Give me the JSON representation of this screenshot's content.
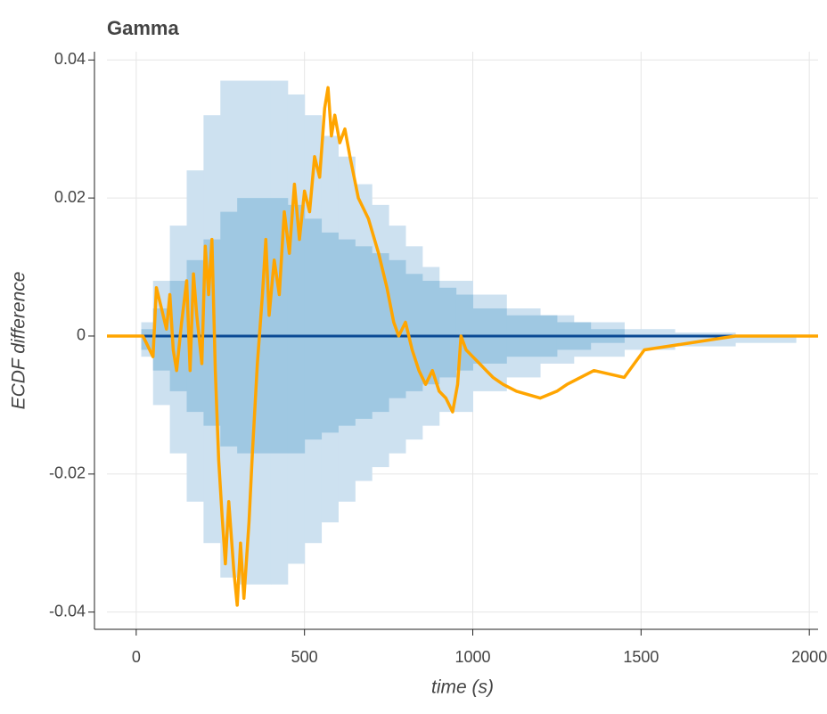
{
  "chart_data": {
    "type": "ecdf-difference",
    "title": "Gamma",
    "x_label": "time (s)",
    "y_label": "ECDF difference",
    "xlim": [
      -87,
      2026
    ],
    "ylim": [
      -0.0425,
      0.0412
    ],
    "xticks": [
      0,
      500,
      1000,
      1500,
      2000
    ],
    "yticks": [
      0.04,
      0.02,
      0,
      -0.02,
      -0.04
    ],
    "grid": true,
    "bands": [
      {
        "color": "#cde1f0",
        "x": [
          15,
          50,
          100,
          150,
          200,
          250,
          300,
          400,
          450,
          500,
          550,
          600,
          650,
          700,
          750,
          800,
          850,
          900,
          1000,
          1100,
          1200,
          1300,
          1450,
          1600,
          1780
        ],
        "upper": [
          0.002,
          0.008,
          0.016,
          0.024,
          0.032,
          0.037,
          0.037,
          0.037,
          0.035,
          0.032,
          0.029,
          0.026,
          0.022,
          0.019,
          0.016,
          0.013,
          0.01,
          0.008,
          0.006,
          0.004,
          0.003,
          0.002,
          0.001,
          0.0005,
          0
        ],
        "lower": [
          -0.003,
          -0.01,
          -0.017,
          -0.024,
          -0.03,
          -0.035,
          -0.036,
          -0.036,
          -0.033,
          -0.03,
          -0.027,
          -0.024,
          -0.021,
          -0.019,
          -0.017,
          -0.015,
          -0.013,
          -0.011,
          -0.008,
          -0.006,
          -0.004,
          -0.003,
          -0.002,
          -0.0015,
          -0.001
        ]
      },
      {
        "color": "#9fc8e2",
        "x": [
          15,
          50,
          100,
          150,
          200,
          250,
          300,
          450,
          500,
          550,
          600,
          650,
          700,
          750,
          800,
          850,
          900,
          950,
          1000,
          1100,
          1250,
          1350
        ],
        "upper": [
          0.001,
          0.004,
          0.008,
          0.011,
          0.014,
          0.018,
          0.02,
          0.019,
          0.017,
          0.015,
          0.014,
          0.013,
          0.012,
          0.011,
          0.009,
          0.008,
          0.007,
          0.006,
          0.004,
          0.003,
          0.002,
          0.001
        ],
        "lower": [
          -0.002,
          -0.005,
          -0.008,
          -0.011,
          -0.013,
          -0.016,
          -0.017,
          -0.017,
          -0.015,
          -0.014,
          -0.013,
          -0.012,
          -0.011,
          -0.009,
          -0.008,
          -0.007,
          -0.006,
          -0.005,
          -0.004,
          -0.003,
          -0.002,
          -0.001
        ]
      }
    ],
    "zero_line": {
      "value": 0,
      "color": "#0b4a94"
    },
    "series": [
      {
        "color": "#ffa500",
        "x": [
          -87,
          20,
          30,
          50,
          60,
          75,
          90,
          100,
          110,
          120,
          135,
          150,
          160,
          170,
          180,
          195,
          205,
          215,
          225,
          235,
          245,
          255,
          265,
          275,
          290,
          300,
          310,
          320,
          335,
          345,
          360,
          375,
          385,
          395,
          410,
          425,
          440,
          455,
          470,
          485,
          500,
          515,
          530,
          545,
          560,
          570,
          580,
          590,
          605,
          620,
          635,
          660,
          690,
          720,
          745,
          765,
          780,
          800,
          820,
          840,
          860,
          880,
          900,
          920,
          940,
          955,
          965,
          980,
          1000,
          1020,
          1040,
          1060,
          1090,
          1130,
          1200,
          1250,
          1280,
          1320,
          1360,
          1450,
          1480,
          1510,
          1780,
          2026
        ],
        "values": [
          0,
          0,
          -0.001,
          -0.003,
          0.007,
          0.004,
          0.001,
          0.006,
          -0.002,
          -0.005,
          0.002,
          0.008,
          -0.005,
          0.009,
          0.003,
          -0.004,
          0.013,
          0.006,
          0.014,
          -0.005,
          -0.018,
          -0.026,
          -0.033,
          -0.024,
          -0.034,
          -0.039,
          -0.03,
          -0.038,
          -0.027,
          -0.017,
          -0.004,
          0.006,
          0.014,
          0.003,
          0.011,
          0.006,
          0.018,
          0.012,
          0.022,
          0.014,
          0.021,
          0.018,
          0.026,
          0.023,
          0.033,
          0.036,
          0.029,
          0.032,
          0.028,
          0.03,
          0.026,
          0.02,
          0.017,
          0.012,
          0.007,
          0.002,
          0,
          0.002,
          -0.002,
          -0.005,
          -0.007,
          -0.005,
          -0.008,
          -0.009,
          -0.011,
          -0.007,
          0,
          -0.002,
          -0.003,
          -0.004,
          -0.005,
          -0.006,
          -0.007,
          -0.008,
          -0.009,
          -0.008,
          -0.007,
          -0.006,
          -0.005,
          -0.006,
          -0.004,
          -0.002,
          0,
          0
        ]
      }
    ]
  }
}
